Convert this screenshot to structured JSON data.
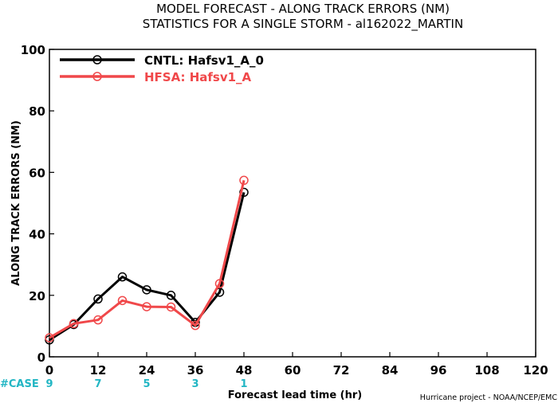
{
  "chart_data": {
    "type": "line",
    "title": "MODEL FORECAST - ALONG TRACK ERRORS (NM)",
    "subtitle": "STATISTICS FOR A SINGLE STORM - al162022_MARTIN",
    "xlabel": "Forecast lead time (hr)",
    "ylabel": "ALONG TRACK ERRORS (NM)",
    "xlim": [
      0,
      120
    ],
    "ylim": [
      0,
      100
    ],
    "x_ticks": [
      0,
      12,
      24,
      36,
      48,
      60,
      72,
      84,
      96,
      108,
      120
    ],
    "y_ticks": [
      0,
      20,
      40,
      60,
      80,
      100
    ],
    "grid": false,
    "legend_position": "top-left",
    "case_label": "#CASE",
    "cases": [
      {
        "x": 0,
        "n": "9"
      },
      {
        "x": 12,
        "n": "7"
      },
      {
        "x": 24,
        "n": "5"
      },
      {
        "x": 36,
        "n": "3"
      },
      {
        "x": 48,
        "n": "1"
      }
    ],
    "series": [
      {
        "name": "CNTL: Hafsv1_A_0",
        "color": "#000000",
        "x": [
          0,
          6,
          12,
          18,
          24,
          30,
          36,
          42,
          48
        ],
        "values": [
          5.5,
          10.5,
          18.8,
          26,
          21.8,
          20,
          11.2,
          21,
          53.5
        ]
      },
      {
        "name": "HFSA: Hafsv1_A",
        "color": "#f0484a",
        "x": [
          0,
          6,
          12,
          18,
          24,
          30,
          36,
          42,
          48
        ],
        "values": [
          6.2,
          10.8,
          12,
          18.3,
          16.3,
          16.2,
          10.2,
          23.8,
          57.4
        ]
      }
    ]
  },
  "footer": {
    "credit": "Hurricane project - NOAA/NCEP/EMC"
  }
}
